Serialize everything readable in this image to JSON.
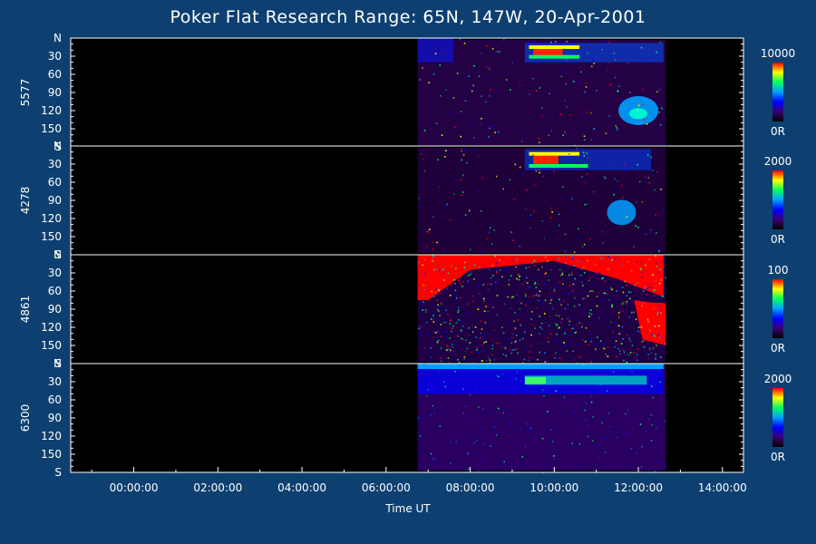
{
  "title": "Poker Flat Research Range: 65N, 147W, 20-Apr-2001",
  "chart_data": {
    "type": "heatmap",
    "title": "Poker Flat Research Range: 65N, 147W, 20-Apr-2001",
    "xlabel": "Time UT",
    "x_ticks": [
      "00:00:00",
      "02:00:00",
      "04:00:00",
      "06:00:00",
      "08:00:00",
      "10:00:00",
      "12:00:00",
      "14:00:00"
    ],
    "xlim_hours": [
      -1.5,
      14.5
    ],
    "data_coverage_hours": [
      6.75,
      12.65
    ],
    "y_ticks": [
      "N",
      "30",
      "60",
      "90",
      "120",
      "150",
      "S"
    ],
    "ylim": [
      0,
      180
    ],
    "panels": [
      {
        "name": "5577",
        "scale_max": "10000",
        "scale_min": "0R"
      },
      {
        "name": "4278",
        "scale_max": "2000",
        "scale_min": "0R"
      },
      {
        "name": "4861",
        "scale_max": "100",
        "scale_min": "0R"
      },
      {
        "name": "6300",
        "scale_max": "2000",
        "scale_min": "0R"
      }
    ],
    "colormap": [
      "#000000",
      "#3a0070",
      "#0000ff",
      "#00a0ff",
      "#00ff60",
      "#ffff00",
      "#ff0000"
    ]
  }
}
